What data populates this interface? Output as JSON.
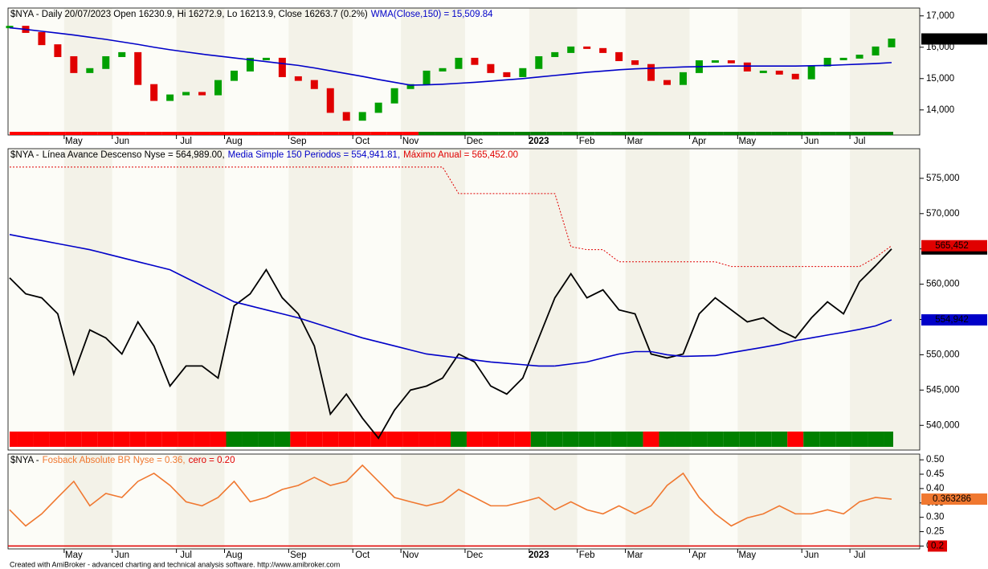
{
  "chart_data": [
    {
      "type": "candlestick",
      "title": "$NYA - Daily 20/07/2023 Open 16230.9, Hi 16272.9, Lo 16213.9, Close 16263.7 (0.2%)",
      "categories": [
        null,
        null,
        null,
        null,
        "May",
        null,
        null,
        "Jun",
        null,
        null,
        null,
        "Jul",
        null,
        null,
        "Aug",
        null,
        null,
        null,
        "Sep",
        null,
        null,
        null,
        "Oct",
        null,
        null,
        "Nov",
        null,
        null,
        null,
        "Dec",
        null,
        null,
        null,
        "2023",
        null,
        null,
        "Feb",
        null,
        null,
        "Mar",
        null,
        null,
        null,
        "Apr",
        null,
        null,
        "May",
        null,
        null,
        null,
        "Jun",
        null,
        null,
        "Jul",
        null,
        null
      ],
      "ylim": [
        13200,
        17250
      ],
      "yticks": [
        {
          "value": 14000,
          "label": "14,000"
        },
        {
          "value": 15000,
          "label": "15,000"
        },
        {
          "value": 16000,
          "label": "16,000"
        },
        {
          "value": 17000,
          "label": "17,000"
        }
      ],
      "up_color": "#00a000",
      "down_color": "#e00000",
      "signal_colors": [
        "#ff0000",
        "#ff0000",
        "#ff0000",
        "#ff0000",
        "#ff0000",
        "#ff0000",
        "#ff0000",
        "#ff0000",
        "#ff0000",
        "#ff0000",
        "#ff0000",
        "#ff0000",
        "#ff0000",
        "#ff0000",
        "#ff0000",
        "#ff0000",
        "#ff0000",
        "#ff0000",
        "#ff0000",
        "#ff0000",
        "#ff0000",
        "#ff0000",
        "#ff0000",
        "#ff0000",
        "#ff0000",
        "#ff0000",
        "#008000",
        "#008000",
        "#008000",
        "#008000",
        "#008000",
        "#008000",
        "#008000",
        "#008000",
        "#008000",
        "#008000",
        "#008000",
        "#008000",
        "#008000",
        "#008000",
        "#008000",
        "#008000",
        "#008000",
        "#008000",
        "#008000",
        "#008000",
        "#008000",
        "#008000",
        "#008000",
        "#008000",
        "#008000",
        "#008000",
        "#008000",
        "#008000",
        "#008000",
        "#008000"
      ],
      "series": [
        {
          "style": "candles",
          "color": "#000000",
          "last_label": "16,263.7",
          "values": [
            16670,
            16470,
            16080,
            15700,
            15190,
            15320,
            15700,
            15830,
            14810,
            14300,
            14480,
            14560,
            14480,
            14940,
            15240,
            15650,
            15650,
            15060,
            14940,
            14680,
            13920,
            13670,
            13920,
            14220,
            14680,
            14810,
            15240,
            15320,
            15650,
            15450,
            15190,
            15060,
            15320,
            15700,
            15830,
            16010,
            15960,
            15830,
            15570,
            15450,
            14940,
            14810,
            15190,
            15570,
            15570,
            15500,
            15240,
            15240,
            15140,
            14990,
            15400,
            15650,
            15650,
            15750,
            16010,
            16263.7
          ]
        },
        {
          "style": "line",
          "name": "WMA(Close,150) = 15,509.84",
          "color": "#0000c8",
          "colors": [
            "#e00000",
            "#e00000",
            "#e00000",
            "#e00000",
            "#e00000",
            "#e00000",
            "#e00000",
            "#e00000",
            "#e00000",
            "#e00000",
            "#e00000",
            "#e00000",
            "#e00000",
            "#e00000",
            "#e00000",
            "#e00000",
            "#e00000",
            "#e00000",
            "#e00000",
            "#e00000",
            "#e00000",
            "#e00000",
            "#e00000",
            "#e00000",
            "#e00000",
            "#e00000",
            "#0000c8",
            "#0000c8",
            "#0000c8",
            "#0000c8",
            "#0000c8",
            "#0000c8",
            "#0000c8",
            "#0000c8",
            "#0000c8",
            "#0000c8",
            "#0000c8",
            "#0000c8",
            "#0000c8",
            "#0000c8",
            "#0000c8",
            "#0000c8",
            "#0000c8",
            "#0000c8",
            "#0000c8",
            "#0000c8",
            "#0000c8",
            "#0000c8",
            "#0000c8",
            "#0000c8",
            "#0000c8",
            "#0000c8",
            "#0000c8",
            "#0000c8",
            "#0000c8",
            "#0000c8"
          ],
          "values": [
            16620,
            16570,
            16510,
            16450,
            16390,
            16320,
            16250,
            16170,
            16090,
            16000,
            15920,
            15850,
            15780,
            15720,
            15660,
            15600,
            15540,
            15480,
            15420,
            15340,
            15250,
            15160,
            15070,
            14970,
            14880,
            14790,
            14800,
            14820,
            14850,
            14880,
            14920,
            14960,
            15000,
            15050,
            15100,
            15150,
            15200,
            15240,
            15280,
            15310,
            15330,
            15350,
            15370,
            15380,
            15390,
            15400,
            15400,
            15400,
            15400,
            15400,
            15410,
            15420,
            15440,
            15460,
            15480,
            15509.84
          ]
        }
      ]
    },
    {
      "type": "line",
      "title": "$NYA -",
      "ylim": [
        536500,
        579200
      ],
      "yticks": [
        {
          "value": 540000,
          "label": "540,000"
        },
        {
          "value": 545000,
          "label": "545,000"
        },
        {
          "value": 550000,
          "label": "550,000"
        },
        {
          "value": 555000,
          "label": "555,000"
        },
        {
          "value": 560000,
          "label": "560,000"
        },
        {
          "value": 565000,
          "label": "565,000"
        },
        {
          "value": 570000,
          "label": "570,000"
        },
        {
          "value": 575000,
          "label": "575,000"
        }
      ],
      "signal_colors": [
        "#ff0000",
        "#ff0000",
        "#ff0000",
        "#ff0000",
        "#ff0000",
        "#ff0000",
        "#ff0000",
        "#ff0000",
        "#ff0000",
        "#ff0000",
        "#ff0000",
        "#ff0000",
        "#ff0000",
        "#ff0000",
        "#008000",
        "#008000",
        "#008000",
        "#008000",
        "#ff0000",
        "#ff0000",
        "#ff0000",
        "#ff0000",
        "#ff0000",
        "#ff0000",
        "#ff0000",
        "#ff0000",
        "#ff0000",
        "#ff0000",
        "#008000",
        "#ff0000",
        "#ff0000",
        "#ff0000",
        "#ff0000",
        "#008000",
        "#008000",
        "#008000",
        "#008000",
        "#008000",
        "#008000",
        "#008000",
        "#ff0000",
        "#008000",
        "#008000",
        "#008000",
        "#008000",
        "#008000",
        "#008000",
        "#008000",
        "#008000",
        "#ff0000",
        "#008000",
        "#008000",
        "#008000",
        "#008000",
        "#008000",
        "#008000"
      ],
      "series": [
        {
          "style": "line",
          "name": "Línea Avance Descenso Nyse = 564,989.00,",
          "color": "#000000",
          "last_label": "564,989",
          "values": [
            560900,
            558640,
            558070,
            555800,
            547270,
            553520,
            552390,
            550110,
            554660,
            551250,
            545570,
            548410,
            548410,
            546700,
            556930,
            558640,
            562050,
            558070,
            555800,
            551250,
            541590,
            544430,
            541020,
            538180,
            542160,
            545000,
            545570,
            546700,
            550110,
            548980,
            545570,
            544430,
            546700,
            552390,
            558070,
            561480,
            558070,
            559200,
            556360,
            555800,
            550110,
            549550,
            550110,
            555800,
            558070,
            556360,
            554660,
            555230,
            553520,
            552390,
            555230,
            557500,
            555800,
            560340,
            562610,
            564989
          ]
        },
        {
          "style": "line",
          "name": "Media Simple 150 Periodos = 554,941.81,",
          "color": "#0000c8",
          "last_label": "554,942",
          "colors": [
            "#e00000",
            "#e00000",
            "#e00000",
            "#e00000",
            "#e00000",
            "#e00000",
            "#e00000",
            "#e00000",
            "#e00000",
            "#e00000",
            "#e00000",
            "#e00000",
            "#e00000",
            "#e00000",
            "#e00000",
            "#e00000",
            "#e00000",
            "#e00000",
            "#e00000",
            "#e00000",
            "#e00000",
            "#e00000",
            "#e00000",
            "#e00000",
            "#e00000",
            "#e00000",
            "#e00000",
            "#e00000",
            "#e00000",
            "#e00000",
            "#e00000",
            "#e00000",
            "#e00000",
            "#e00000",
            "#0000c8",
            "#0000c8",
            "#0000c8",
            "#0000c8",
            "#0000c8",
            "#0000c8",
            "#0000c8",
            "#0000c8",
            "#0000c8",
            "#0000c8",
            "#0000c8",
            "#0000c8",
            "#0000c8",
            "#0000c8",
            "#0000c8",
            "#0000c8",
            "#0000c8",
            "#0000c8",
            "#0000c8",
            "#0000c8",
            "#0000c8",
            "#0000c8"
          ],
          "values": [
            567040,
            566600,
            566180,
            565750,
            565320,
            564890,
            564320,
            563750,
            563180,
            562620,
            562050,
            560910,
            559770,
            558640,
            557500,
            556930,
            556360,
            555800,
            555230,
            554520,
            553810,
            553100,
            552390,
            551820,
            551250,
            550680,
            550110,
            549830,
            549550,
            549260,
            548980,
            548790,
            548600,
            548410,
            548410,
            548700,
            548980,
            549550,
            550110,
            550450,
            550450,
            550000,
            549770,
            549830,
            549890,
            550300,
            550680,
            551070,
            551480,
            552000,
            552390,
            552800,
            553180,
            553600,
            554090,
            554942
          ]
        },
        {
          "style": "step-dashed",
          "name": "Máximo Anual = 565,452.00",
          "color": "#e00000",
          "last_label": "565,452",
          "values": [
            576590,
            576590,
            576590,
            576590,
            576590,
            576590,
            576590,
            576590,
            576590,
            576590,
            576590,
            576590,
            576590,
            576590,
            576590,
            576590,
            576590,
            576590,
            576590,
            576590,
            576590,
            576590,
            576590,
            576590,
            576590,
            576590,
            576590,
            576590,
            572840,
            572840,
            572840,
            572840,
            572840,
            572840,
            572840,
            565320,
            564890,
            564890,
            563180,
            563180,
            563180,
            563180,
            563180,
            563180,
            563180,
            562500,
            562500,
            562500,
            562500,
            562500,
            562500,
            562500,
            562500,
            562500,
            563800,
            565452
          ]
        }
      ]
    },
    {
      "type": "line",
      "title": "$NYA -",
      "categories": [
        null,
        null,
        null,
        null,
        "May",
        null,
        null,
        "Jun",
        null,
        null,
        null,
        "Jul",
        null,
        null,
        "Aug",
        null,
        null,
        null,
        "Sep",
        null,
        null,
        null,
        "Oct",
        null,
        null,
        "Nov",
        null,
        null,
        null,
        "Dec",
        null,
        null,
        null,
        "2023",
        null,
        null,
        "Feb",
        null,
        null,
        "Mar",
        null,
        null,
        null,
        "Apr",
        null,
        null,
        "May",
        null,
        null,
        null,
        "Jun",
        null,
        null,
        "Jul",
        null,
        null
      ],
      "ylim": [
        0.19,
        0.52
      ],
      "yticks": [
        {
          "value": 0.2,
          "label": "0.20"
        },
        {
          "value": 0.25,
          "label": "0.25"
        },
        {
          "value": 0.3,
          "label": "0.30"
        },
        {
          "value": 0.35,
          "label": "0.35"
        },
        {
          "value": 0.4,
          "label": "0.40"
        },
        {
          "value": 0.45,
          "label": "0.45"
        },
        {
          "value": 0.5,
          "label": "0.50"
        }
      ],
      "series": [
        {
          "style": "line",
          "name": "Fosback Absolute BR Nyse = 0.36,",
          "color": "#f07830",
          "last_label": "0.363286",
          "values": [
            0.326,
            0.27,
            0.312,
            0.369,
            0.425,
            0.34,
            0.383,
            0.369,
            0.425,
            0.453,
            0.411,
            0.354,
            0.34,
            0.369,
            0.425,
            0.354,
            0.369,
            0.397,
            0.411,
            0.439,
            0.411,
            0.425,
            0.481,
            0.425,
            0.369,
            0.354,
            0.34,
            0.354,
            0.397,
            0.369,
            0.34,
            0.34,
            0.354,
            0.369,
            0.326,
            0.354,
            0.326,
            0.312,
            0.34,
            0.312,
            0.34,
            0.411,
            0.453,
            0.369,
            0.312,
            0.27,
            0.298,
            0.312,
            0.34,
            0.312,
            0.312,
            0.326,
            0.312,
            0.354,
            0.369,
            0.363286
          ]
        },
        {
          "style": "hline",
          "name": "cero = 0.20",
          "color": "#e00000",
          "last_label": "0.2",
          "value": 0.2
        }
      ]
    }
  ],
  "footer": "Created with AmiBroker - advanced charting and technical analysis software. http://www.amibroker.com"
}
